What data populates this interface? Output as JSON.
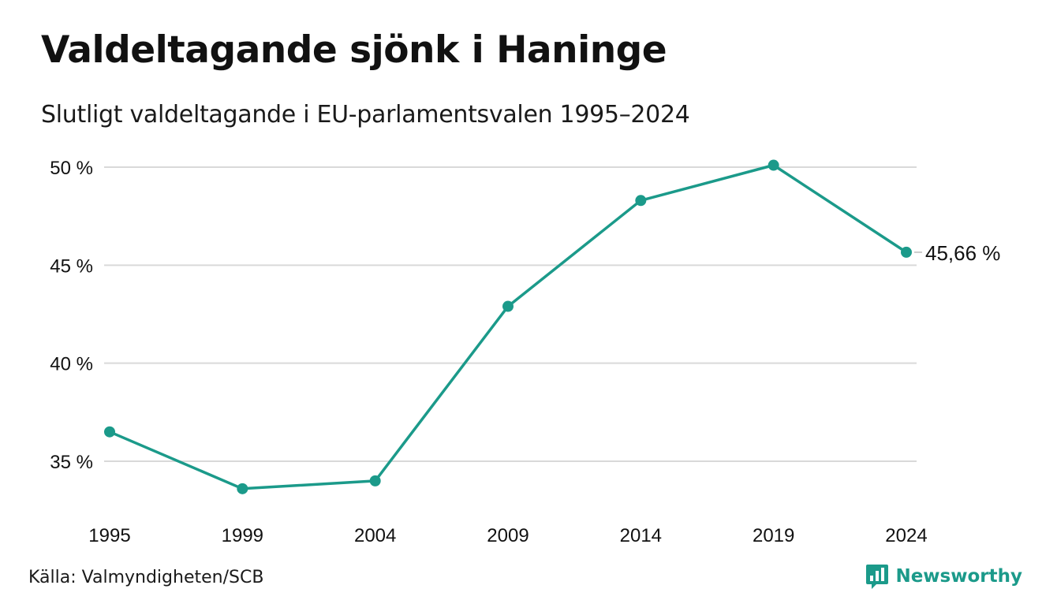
{
  "header": {
    "title": "Valdeltagande sjönk i Haninge",
    "subtitle": "Slutligt valdeltagande i EU-parlamentsvalen 1995–2024"
  },
  "footer": {
    "source": "Källa: Valmyndigheten/SCB",
    "brand": "Newsworthy",
    "brand_icon": "bar-chart-speech-bubble-icon"
  },
  "colors": {
    "line": "#1b9a8a",
    "grid": "#d9d9d9",
    "brand": "#1b9a8a"
  },
  "chart_data": {
    "type": "line",
    "x": [
      "1995",
      "1999",
      "2004",
      "2009",
      "2014",
      "2019",
      "2024"
    ],
    "series": [
      {
        "values": [
          36.5,
          33.6,
          34.0,
          42.9,
          48.3,
          50.1,
          45.66
        ]
      }
    ],
    "ylim": [
      33,
      50
    ],
    "yticks": [
      35,
      40,
      45,
      50
    ],
    "ytick_labels": [
      "35 %",
      "40 %",
      "45 %",
      "50 %"
    ],
    "xtick_labels": [
      "1995",
      "1999",
      "2004",
      "2009",
      "2014",
      "2019",
      "2024"
    ],
    "end_label": "45,66 %",
    "grid": true,
    "xlabel": "",
    "ylabel": ""
  }
}
